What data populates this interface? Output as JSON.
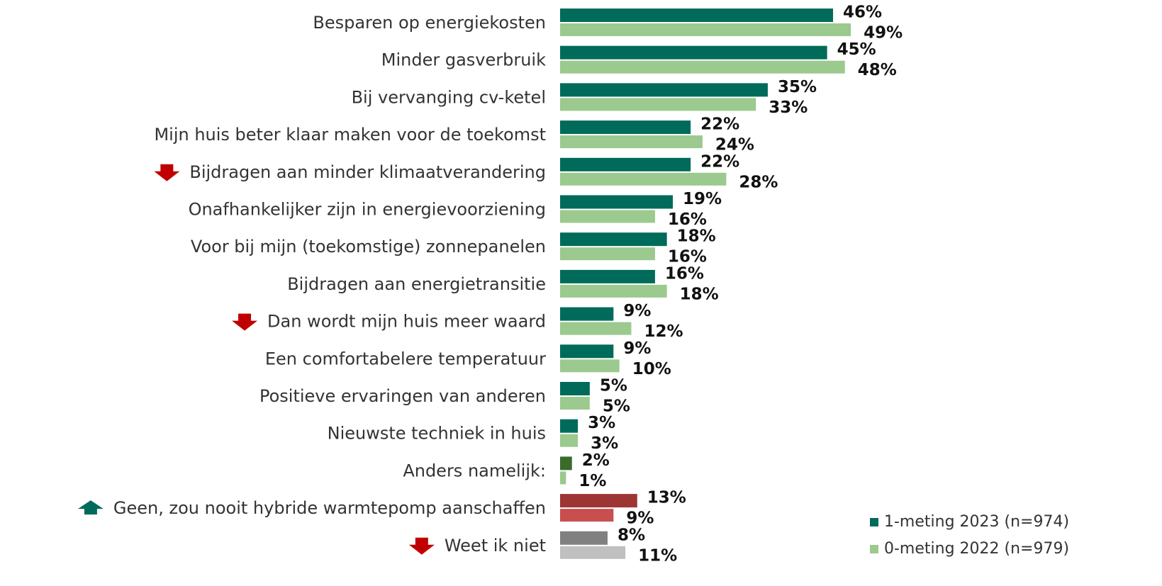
{
  "chart_data": {
    "type": "bar",
    "orientation": "horizontal",
    "categories": [
      "Besparen op energiekosten",
      "Minder gasverbruik",
      "Bij vervanging cv-ketel",
      "Mijn huis beter klaar maken voor de toekomst",
      "Bijdragen aan minder klimaatverandering",
      "Onafhankelijker zijn in energievoorziening",
      "Voor bij mijn (toekomstige) zonnepanelen",
      "Bijdragen aan energietransitie",
      "Dan wordt mijn huis meer waard",
      "Een comfortabelere temperatuur",
      "Positieve ervaringen van anderen",
      "Nieuwste techniek in huis",
      "Anders namelijk:",
      "Geen, zou nooit hybride warmtepomp aanschaffen",
      "Weet ik niet"
    ],
    "trend": [
      null,
      null,
      null,
      null,
      "down",
      null,
      null,
      null,
      "down",
      null,
      null,
      null,
      null,
      "up",
      "down"
    ],
    "trend_colors": {
      "down": "#c00000",
      "up": "#006b5a"
    },
    "xlim": [
      0,
      100
    ],
    "series": [
      {
        "name": "1-meting 2023  (n=974)",
        "color": "#006b5a",
        "point_colors": [
          "#006b5a",
          "#006b5a",
          "#006b5a",
          "#006b5a",
          "#006b5a",
          "#006b5a",
          "#006b5a",
          "#006b5a",
          "#006b5a",
          "#006b5a",
          "#006b5a",
          "#006b5a",
          "#3b6b2a",
          "#9e3535",
          "#808080"
        ],
        "values": [
          46,
          45,
          35,
          22,
          22,
          19,
          18,
          16,
          9,
          9,
          5,
          3,
          2,
          13,
          8
        ],
        "value_labels": [
          "46%",
          "45%",
          "35%",
          "22%",
          "22%",
          "19%",
          "18%",
          "16%",
          "9%",
          "9%",
          "5%",
          "3%",
          "2%",
          "13%",
          "8%"
        ]
      },
      {
        "name": "0-meting 2022  (n=979)",
        "color": "#9bc98e",
        "point_colors": [
          "#9bc98e",
          "#9bc98e",
          "#9bc98e",
          "#9bc98e",
          "#9bc98e",
          "#9bc98e",
          "#9bc98e",
          "#9bc98e",
          "#9bc98e",
          "#9bc98e",
          "#9bc98e",
          "#9bc98e",
          "#9bc98e",
          "#c84f4f",
          "#c0c0c0"
        ],
        "values": [
          49,
          48,
          33,
          24,
          28,
          16,
          16,
          18,
          12,
          10,
          5,
          3,
          1,
          9,
          11
        ],
        "value_labels": [
          "49%",
          "48%",
          "33%",
          "24%",
          "28%",
          "16%",
          "16%",
          "18%",
          "12%",
          "10%",
          "5%",
          "3%",
          "1%",
          "9%",
          "11%"
        ]
      }
    ]
  }
}
